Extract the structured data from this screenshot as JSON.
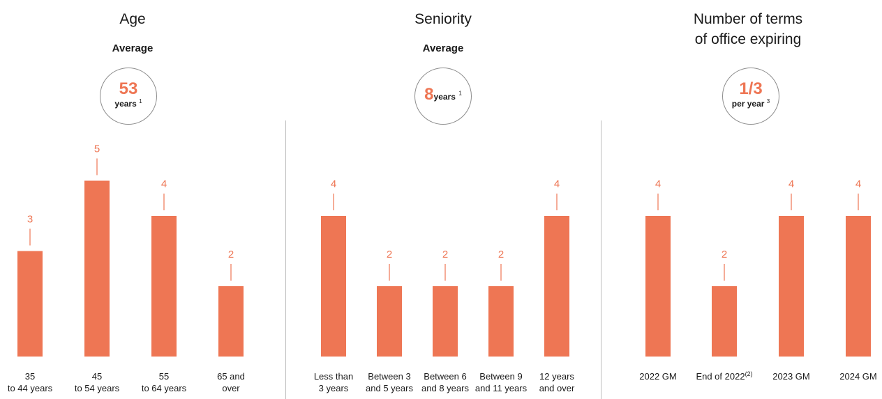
{
  "colors": {
    "bar": "#ee7654",
    "text": "#1a1a1a",
    "circle_border": "#8c8c8c",
    "divider": "#bdbdbd"
  },
  "panels": [
    {
      "title": "Age",
      "subtitle": "Average",
      "badge": {
        "value": "53",
        "unit": "years",
        "note": "1"
      }
    },
    {
      "title": "Seniority",
      "subtitle": "Average",
      "badge": {
        "value": "8",
        "unit": "years",
        "note": "1"
      }
    },
    {
      "title_line1": "Number of terms",
      "title_line2": "of office expiring",
      "badge": {
        "value": "1/3",
        "unit": "per year",
        "note": "3"
      }
    }
  ],
  "chart_data": [
    {
      "type": "bar",
      "title": "Age",
      "subtitle": "Average",
      "categories": [
        [
          "35",
          "to 44 years"
        ],
        [
          "45",
          "to 54 years"
        ],
        [
          "55",
          "to 64 years"
        ],
        [
          "65 and",
          "over"
        ]
      ],
      "values": [
        3,
        5,
        4,
        2
      ],
      "ylim": [
        0,
        5
      ],
      "grid": false
    },
    {
      "type": "bar",
      "title": "Seniority",
      "subtitle": "Average",
      "categories": [
        [
          "Less than",
          "3 years"
        ],
        [
          "Between 3",
          "and 5 years"
        ],
        [
          "Between 6",
          "and 8 years"
        ],
        [
          "Between 9",
          "and 11 years"
        ],
        [
          "12 years",
          "and over"
        ]
      ],
      "values": [
        4,
        2,
        2,
        2,
        4
      ],
      "ylim": [
        0,
        5
      ],
      "grid": false
    },
    {
      "type": "bar",
      "title": "Number of terms of office expiring",
      "categories": [
        [
          "2022 GM"
        ],
        [
          "End of 2022(2)"
        ],
        [
          "2023 GM"
        ],
        [
          "2024 GM"
        ]
      ],
      "values": [
        4,
        2,
        4,
        4
      ],
      "ylim": [
        0,
        5
      ],
      "grid": false
    }
  ]
}
